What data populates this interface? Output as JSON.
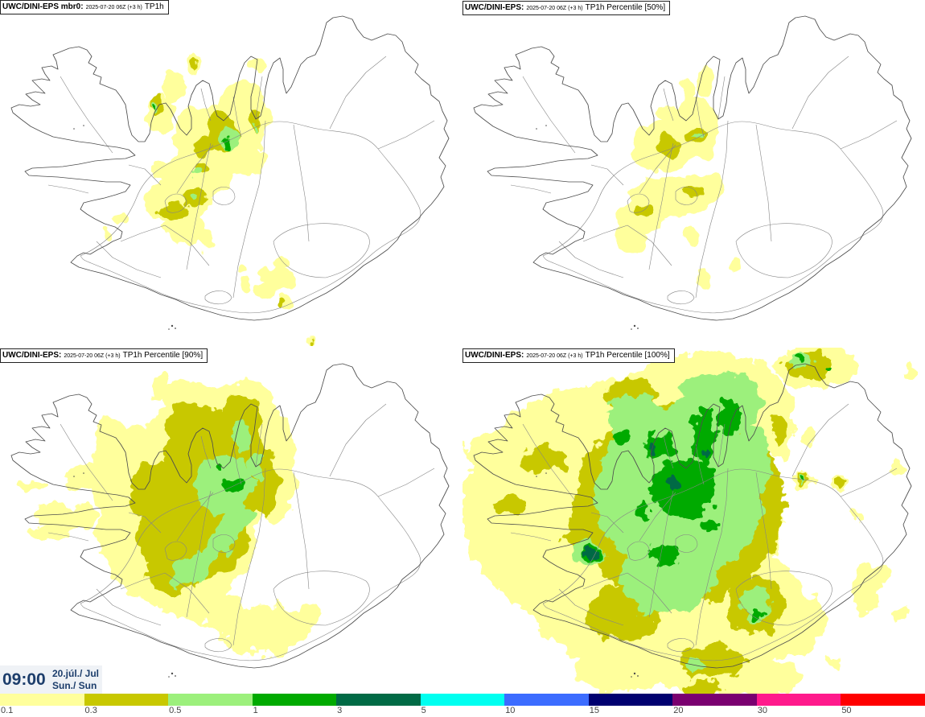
{
  "panels": [
    {
      "title_model": "UWC/DINI-EPS mbr0:",
      "title_run": "2025-07-20 06Z (+3 h)",
      "title_field": "TP1h"
    },
    {
      "title_model": "UWC/DINI-EPS:",
      "title_run": "2025-07-20 06Z (+3 h)",
      "title_field": "TP1h Percentile [50%]"
    },
    {
      "title_model": "UWC/DINI-EPS:",
      "title_run": "2025-07-20 06Z (+3 h)",
      "title_field": "TP1h Percentile [90%]"
    },
    {
      "title_model": "UWC/DINI-EPS:",
      "title_run": "2025-07-20 06Z (+3 h)",
      "title_field": "TP1h Percentile [100%]"
    }
  ],
  "valid_time": {
    "clock": "09:00",
    "date": "20.júl./ Jul",
    "weekday": "Sun./ Sun"
  },
  "legend": {
    "levels": [
      {
        "label": "0.1",
        "color": "#ffff9c"
      },
      {
        "label": "0.3",
        "color": "#c8c800"
      },
      {
        "label": "0.5",
        "color": "#9cf07c"
      },
      {
        "label": "1",
        "color": "#00aa00"
      },
      {
        "label": "3",
        "color": "#006a45"
      },
      {
        "label": "5",
        "color": "#00fff0"
      },
      {
        "label": "10",
        "color": "#3c6cff"
      },
      {
        "label": "15",
        "color": "#000070"
      },
      {
        "label": "20",
        "color": "#7a0070"
      },
      {
        "label": "30",
        "color": "#ff1a8c"
      },
      {
        "label": "50",
        "color": "#ff0000"
      }
    ]
  },
  "map_colors": {
    "coastline": "#4d4d4d",
    "roads_rivers": "#858585",
    "time_text": "#1c3d6b"
  }
}
